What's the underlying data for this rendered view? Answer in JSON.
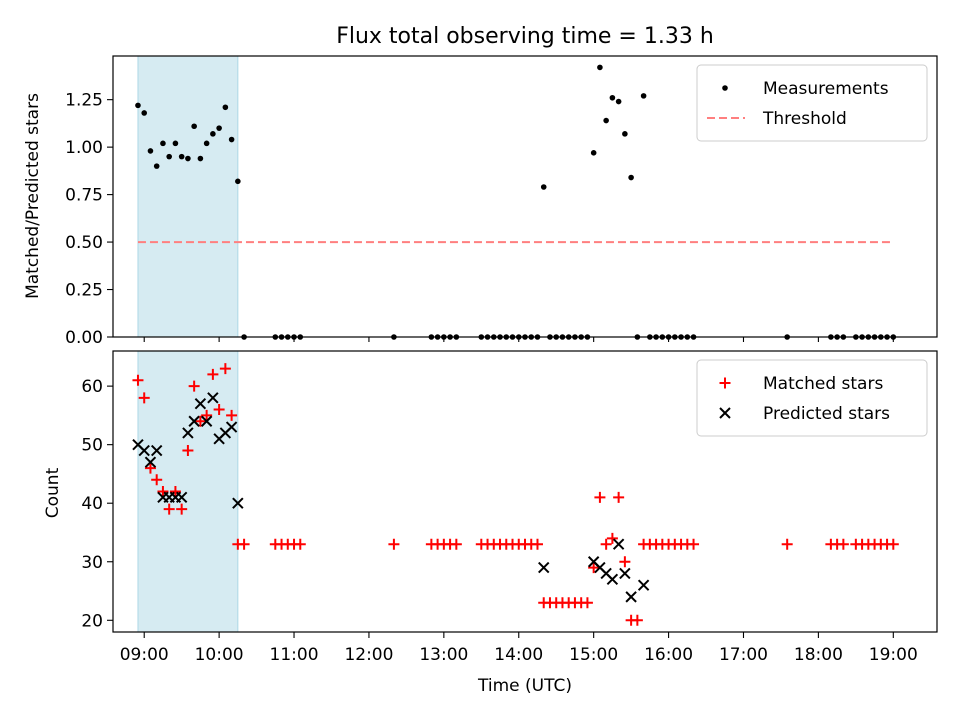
{
  "figure": {
    "title": "Flux total observing time = 1.33 h",
    "highlight_span": {
      "start": "08:55",
      "end": "10:15",
      "color": "#add8e6"
    }
  },
  "chart_data": [
    {
      "type": "scatter",
      "panel": "top",
      "title": "Flux total observing time = 1.33 h",
      "xlabel": "",
      "ylabel": "Matched/Predicted stars",
      "xlim": [
        "08:35",
        "19:35"
      ],
      "ylim": [
        0,
        1.48
      ],
      "yticks": [
        0.0,
        0.25,
        0.5,
        0.75,
        1.0,
        1.25
      ],
      "ytick_labels": [
        "0.00",
        "0.25",
        "0.50",
        "0.75",
        "1.00",
        "1.25"
      ],
      "legend_position": "top-right",
      "series": [
        {
          "name": "Measurements",
          "kind": "scatter",
          "marker": "dot",
          "color": "#000000",
          "points": [
            [
              "08:55",
              1.22
            ],
            [
              "09:00",
              1.18
            ],
            [
              "09:05",
              0.98
            ],
            [
              "09:10",
              0.9
            ],
            [
              "09:15",
              1.02
            ],
            [
              "09:20",
              0.95
            ],
            [
              "09:25",
              1.02
            ],
            [
              "09:30",
              0.95
            ],
            [
              "09:35",
              0.94
            ],
            [
              "09:40",
              1.11
            ],
            [
              "09:45",
              0.94
            ],
            [
              "09:50",
              1.02
            ],
            [
              "09:55",
              1.07
            ],
            [
              "10:00",
              1.1
            ],
            [
              "10:05",
              1.21
            ],
            [
              "10:10",
              1.04
            ],
            [
              "10:15",
              0.82
            ],
            [
              "10:20",
              0.0
            ],
            [
              "10:45",
              0.0
            ],
            [
              "10:50",
              0.0
            ],
            [
              "10:55",
              0.0
            ],
            [
              "11:00",
              0.0
            ],
            [
              "11:05",
              0.0
            ],
            [
              "12:20",
              0.0
            ],
            [
              "12:50",
              0.0
            ],
            [
              "12:55",
              0.0
            ],
            [
              "13:00",
              0.0
            ],
            [
              "13:05",
              0.0
            ],
            [
              "13:10",
              0.0
            ],
            [
              "13:30",
              0.0
            ],
            [
              "13:35",
              0.0
            ],
            [
              "13:40",
              0.0
            ],
            [
              "13:45",
              0.0
            ],
            [
              "13:50",
              0.0
            ],
            [
              "13:55",
              0.0
            ],
            [
              "14:00",
              0.0
            ],
            [
              "14:05",
              0.0
            ],
            [
              "14:10",
              0.0
            ],
            [
              "14:15",
              0.0
            ],
            [
              "14:20",
              0.79
            ],
            [
              "14:25",
              0.0
            ],
            [
              "14:30",
              0.0
            ],
            [
              "14:35",
              0.0
            ],
            [
              "14:40",
              0.0
            ],
            [
              "14:45",
              0.0
            ],
            [
              "14:50",
              0.0
            ],
            [
              "14:55",
              0.0
            ],
            [
              "15:00",
              0.97
            ],
            [
              "15:05",
              1.42
            ],
            [
              "15:10",
              1.14
            ],
            [
              "15:15",
              1.26
            ],
            [
              "15:20",
              1.24
            ],
            [
              "15:25",
              1.07
            ],
            [
              "15:30",
              0.84
            ],
            [
              "15:35",
              0.0
            ],
            [
              "15:40",
              1.27
            ],
            [
              "15:45",
              0.0
            ],
            [
              "15:50",
              0.0
            ],
            [
              "15:55",
              0.0
            ],
            [
              "16:00",
              0.0
            ],
            [
              "16:05",
              0.0
            ],
            [
              "16:10",
              0.0
            ],
            [
              "16:15",
              0.0
            ],
            [
              "16:20",
              0.0
            ],
            [
              "17:35",
              0.0
            ],
            [
              "18:10",
              0.0
            ],
            [
              "18:15",
              0.0
            ],
            [
              "18:20",
              0.0
            ],
            [
              "18:30",
              0.0
            ],
            [
              "18:35",
              0.0
            ],
            [
              "18:40",
              0.0
            ],
            [
              "18:45",
              0.0
            ],
            [
              "18:50",
              0.0
            ],
            [
              "18:55",
              0.0
            ],
            [
              "19:00",
              0.0
            ]
          ]
        },
        {
          "name": "Threshold",
          "kind": "line",
          "style": "dashed",
          "color": "#ff7f7f",
          "points": [
            [
              "08:55",
              0.5
            ],
            [
              "19:00",
              0.5
            ]
          ]
        }
      ]
    },
    {
      "type": "scatter",
      "panel": "bottom",
      "xlabel": "Time (UTC)",
      "ylabel": "Count",
      "xlim": [
        "08:35",
        "19:35"
      ],
      "ylim": [
        18,
        66
      ],
      "yticks": [
        20,
        30,
        40,
        50,
        60
      ],
      "ytick_labels": [
        "20",
        "30",
        "40",
        "50",
        "60"
      ],
      "xticks": [
        "09:00",
        "10:00",
        "11:00",
        "12:00",
        "13:00",
        "14:00",
        "15:00",
        "16:00",
        "17:00",
        "18:00",
        "19:00"
      ],
      "xtick_labels": [
        "09:00",
        "10:00",
        "11:00",
        "12:00",
        "13:00",
        "14:00",
        "15:00",
        "16:00",
        "17:00",
        "18:00",
        "19:00"
      ],
      "legend_position": "top-right",
      "series": [
        {
          "name": "Matched stars",
          "kind": "scatter",
          "marker": "plus",
          "color": "#ff0000",
          "points": [
            [
              "08:55",
              61
            ],
            [
              "09:00",
              58
            ],
            [
              "09:05",
              46
            ],
            [
              "09:10",
              44
            ],
            [
              "09:15",
              42
            ],
            [
              "09:20",
              39
            ],
            [
              "09:25",
              42
            ],
            [
              "09:30",
              39
            ],
            [
              "09:35",
              49
            ],
            [
              "09:40",
              60
            ],
            [
              "09:45",
              54
            ],
            [
              "09:50",
              55
            ],
            [
              "09:55",
              62
            ],
            [
              "10:00",
              56
            ],
            [
              "10:05",
              63
            ],
            [
              "10:10",
              55
            ],
            [
              "10:15",
              33
            ],
            [
              "10:20",
              33
            ],
            [
              "10:45",
              33
            ],
            [
              "10:50",
              33
            ],
            [
              "10:55",
              33
            ],
            [
              "11:00",
              33
            ],
            [
              "11:05",
              33
            ],
            [
              "12:20",
              33
            ],
            [
              "12:50",
              33
            ],
            [
              "12:55",
              33
            ],
            [
              "13:00",
              33
            ],
            [
              "13:05",
              33
            ],
            [
              "13:10",
              33
            ],
            [
              "13:30",
              33
            ],
            [
              "13:35",
              33
            ],
            [
              "13:40",
              33
            ],
            [
              "13:45",
              33
            ],
            [
              "13:50",
              33
            ],
            [
              "13:55",
              33
            ],
            [
              "14:00",
              33
            ],
            [
              "14:05",
              33
            ],
            [
              "14:10",
              33
            ],
            [
              "14:15",
              33
            ],
            [
              "14:20",
              23
            ],
            [
              "14:25",
              23
            ],
            [
              "14:30",
              23
            ],
            [
              "14:35",
              23
            ],
            [
              "14:40",
              23
            ],
            [
              "14:45",
              23
            ],
            [
              "14:50",
              23
            ],
            [
              "14:55",
              23
            ],
            [
              "15:00",
              29
            ],
            [
              "15:05",
              41
            ],
            [
              "15:10",
              33
            ],
            [
              "15:15",
              34
            ],
            [
              "15:20",
              41
            ],
            [
              "15:25",
              30
            ],
            [
              "15:30",
              20
            ],
            [
              "15:35",
              20
            ],
            [
              "15:40",
              33
            ],
            [
              "15:45",
              33
            ],
            [
              "15:50",
              33
            ],
            [
              "15:55",
              33
            ],
            [
              "16:00",
              33
            ],
            [
              "16:05",
              33
            ],
            [
              "16:10",
              33
            ],
            [
              "16:15",
              33
            ],
            [
              "16:20",
              33
            ],
            [
              "17:35",
              33
            ],
            [
              "18:10",
              33
            ],
            [
              "18:15",
              33
            ],
            [
              "18:20",
              33
            ],
            [
              "18:30",
              33
            ],
            [
              "18:35",
              33
            ],
            [
              "18:40",
              33
            ],
            [
              "18:45",
              33
            ],
            [
              "18:50",
              33
            ],
            [
              "18:55",
              33
            ],
            [
              "19:00",
              33
            ]
          ]
        },
        {
          "name": "Predicted stars",
          "kind": "scatter",
          "marker": "x",
          "color": "#000000",
          "points": [
            [
              "08:55",
              50
            ],
            [
              "09:00",
              49
            ],
            [
              "09:05",
              47
            ],
            [
              "09:10",
              49
            ],
            [
              "09:15",
              41
            ],
            [
              "09:20",
              41
            ],
            [
              "09:25",
              41
            ],
            [
              "09:30",
              41
            ],
            [
              "09:35",
              52
            ],
            [
              "09:40",
              54
            ],
            [
              "09:45",
              57
            ],
            [
              "09:50",
              54
            ],
            [
              "09:55",
              58
            ],
            [
              "10:00",
              51
            ],
            [
              "10:05",
              52
            ],
            [
              "10:10",
              53
            ],
            [
              "10:15",
              40
            ],
            [
              "14:20",
              29
            ],
            [
              "15:00",
              30
            ],
            [
              "15:05",
              29
            ],
            [
              "15:10",
              28
            ],
            [
              "15:15",
              27
            ],
            [
              "15:20",
              33
            ],
            [
              "15:25",
              28
            ],
            [
              "15:30",
              24
            ],
            [
              "15:40",
              26
            ]
          ]
        }
      ]
    }
  ]
}
